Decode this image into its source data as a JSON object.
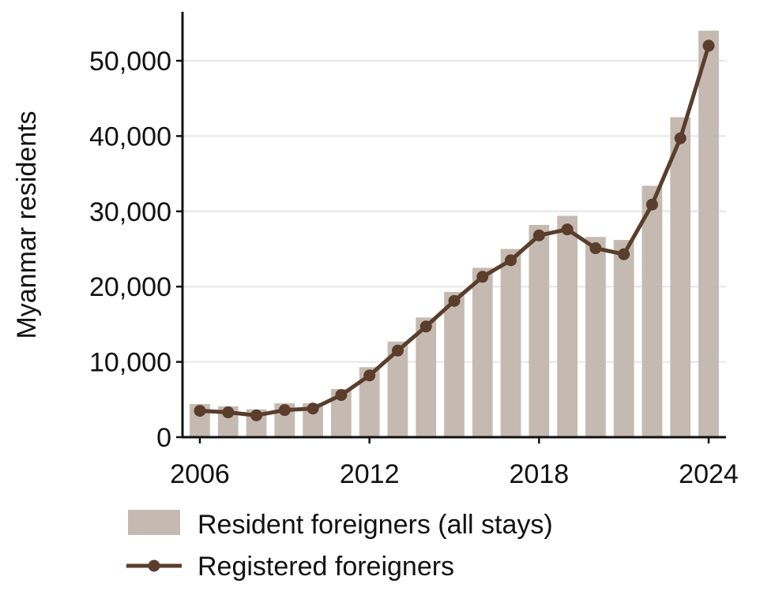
{
  "chart_data": {
    "type": "bar",
    "title": "",
    "xlabel": "",
    "ylabel": "Myanmar residents",
    "x": [
      2006,
      2007,
      2008,
      2009,
      2010,
      2011,
      2012,
      2013,
      2014,
      2015,
      2016,
      2017,
      2018,
      2019,
      2020,
      2021,
      2022,
      2023,
      2024
    ],
    "xticks": [
      "2006",
      "2012",
      "2018",
      "2024"
    ],
    "yticks": [
      "0",
      "10,000",
      "20,000",
      "30,000",
      "40,000",
      "50,000"
    ],
    "ylim": [
      0,
      56500
    ],
    "grid": "horizontal",
    "legend_position": "bottom",
    "series": [
      {
        "name": "Resident foreigners (all stays)",
        "kind": "bar",
        "color": "#c4bab1",
        "values": [
          4400,
          4100,
          3700,
          4500,
          4500,
          6400,
          9300,
          12700,
          15900,
          19300,
          22500,
          25000,
          28200,
          29400,
          26600,
          26200,
          33400,
          42500,
          54000
        ]
      },
      {
        "name": "Registered foreigners",
        "kind": "line",
        "color": "#5a3d2b",
        "values": [
          3500,
          3300,
          2900,
          3600,
          3800,
          5600,
          8200,
          11500,
          14700,
          18100,
          21300,
          23500,
          26800,
          27600,
          25100,
          24300,
          30900,
          39700,
          52000
        ]
      }
    ]
  }
}
